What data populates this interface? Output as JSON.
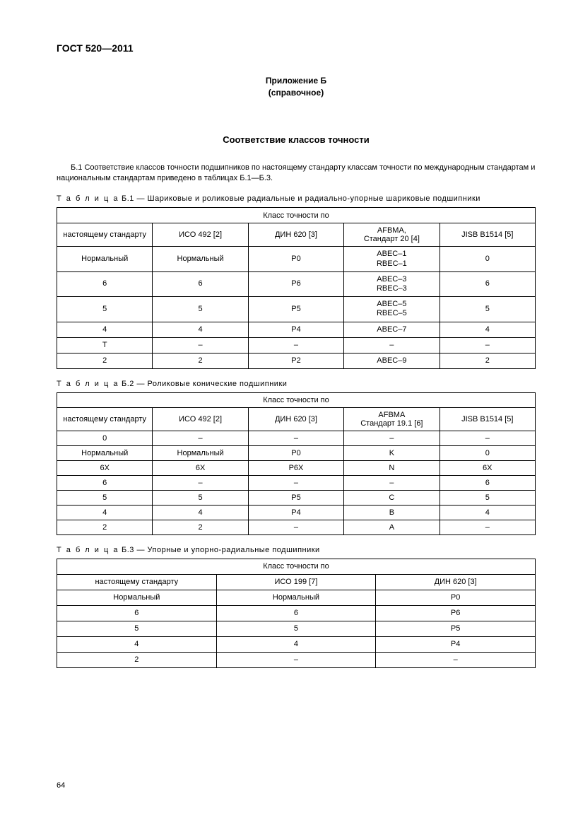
{
  "doc_header": "ГОСТ 520—2011",
  "appendix": {
    "line1": "Приложение Б",
    "line2": "(справочное)"
  },
  "main_title": "Соответствие классов точности",
  "intro": "Б.1 Соответствие классов точности подшипников по настоящему стандарту классам точности по международным стандартам и национальным стандартам приведено в таблицах Б.1—Б.3.",
  "table1": {
    "caption_prefix": "Т а б л и ц а",
    "caption": "Б.1 — Шариковые и роликовые радиальные и радиально-упорные шариковые подшипники",
    "super_header": "Класс точности по",
    "columns": [
      "настоящему стандарту",
      "ИСО 492 [2]",
      "ДИН 620 [3]",
      "AFBMA,\nСтандарт 20 [4]",
      "JISB B1514 [5]"
    ],
    "rows": [
      [
        "Нормальный",
        "Нормальный",
        "P0",
        "ABEC–1\nRBEC–1",
        "0"
      ],
      [
        "6",
        "6",
        "P6",
        "ABEC–3\nRBEC–3",
        "6"
      ],
      [
        "5",
        "5",
        "P5",
        "ABEC–5\nRBEC–5",
        "5"
      ],
      [
        "4",
        "4",
        "P4",
        "ABEC–7",
        "4"
      ],
      [
        "Т",
        "–",
        "–",
        "–",
        "–"
      ],
      [
        "2",
        "2",
        "P2",
        "ABEC–9",
        "2"
      ]
    ],
    "col_widths": [
      "20%",
      "20%",
      "20%",
      "20%",
      "20%"
    ]
  },
  "table2": {
    "caption_prefix": "Т а б л и ц а",
    "caption": "Б.2 — Роликовые конические подшипники",
    "super_header": "Класс точности по",
    "columns": [
      "настоящему стандарту",
      "ИСО 492 [2]",
      "ДИН 620 [3]",
      "AFBMA\nСтандарт 19.1 [6]",
      "JISB B1514 [5]"
    ],
    "rows": [
      [
        "0",
        "–",
        "–",
        "–",
        "–"
      ],
      [
        "Нормальный",
        "Нормальный",
        "P0",
        "K",
        "0"
      ],
      [
        "6Х",
        "6Х",
        "P6X",
        "N",
        "6Х"
      ],
      [
        "6",
        "–",
        "–",
        "–",
        "6"
      ],
      [
        "5",
        "5",
        "P5",
        "C",
        "5"
      ],
      [
        "4",
        "4",
        "P4",
        "B",
        "4"
      ],
      [
        "2",
        "2",
        "–",
        "A",
        "–"
      ]
    ],
    "col_widths": [
      "20%",
      "20%",
      "20%",
      "20%",
      "20%"
    ]
  },
  "table3": {
    "caption_prefix": "Т а б л и ц а",
    "caption": "Б.3 — Упорные и упорно-радиальные подшипники",
    "super_header": "Класс точности по",
    "columns": [
      "настоящему стандарту",
      "ИСО 199 [7]",
      "ДИН 620 [3]"
    ],
    "rows": [
      [
        "Нормальный",
        "Нормальный",
        "P0"
      ],
      [
        "6",
        "6",
        "P6"
      ],
      [
        "5",
        "5",
        "P5"
      ],
      [
        "4",
        "4",
        "P4"
      ],
      [
        "2",
        "–",
        "–"
      ]
    ],
    "col_widths": [
      "33.33%",
      "33.33%",
      "33.34%"
    ]
  },
  "page_number": "64",
  "colors": {
    "text": "#000000",
    "background": "#ffffff",
    "border": "#000000"
  }
}
